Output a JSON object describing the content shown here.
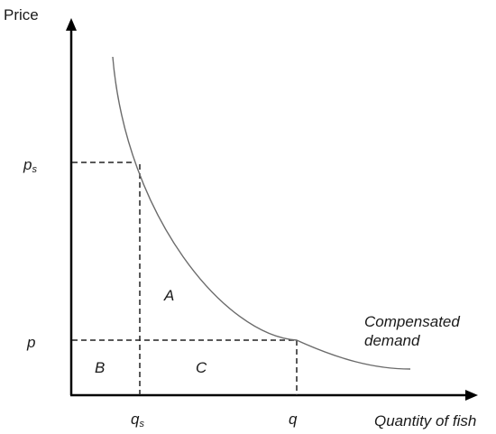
{
  "axes": {
    "y_title": "Price",
    "x_title": "Quantity of fish"
  },
  "price_labels": {
    "ps_base": "p",
    "ps_sub": "s",
    "p": "p"
  },
  "quantity_labels": {
    "qs_base": "q",
    "qs_sub": "s",
    "q": "q"
  },
  "regions": {
    "a": "A",
    "b": "B",
    "c": "C"
  },
  "curve": {
    "label_line1": "Compensated",
    "label_line2": "demand"
  },
  "colors": {
    "axis": "#000000",
    "curve": "#6b6b6b",
    "dashed": "#222222",
    "text": "#1a1a1a"
  }
}
